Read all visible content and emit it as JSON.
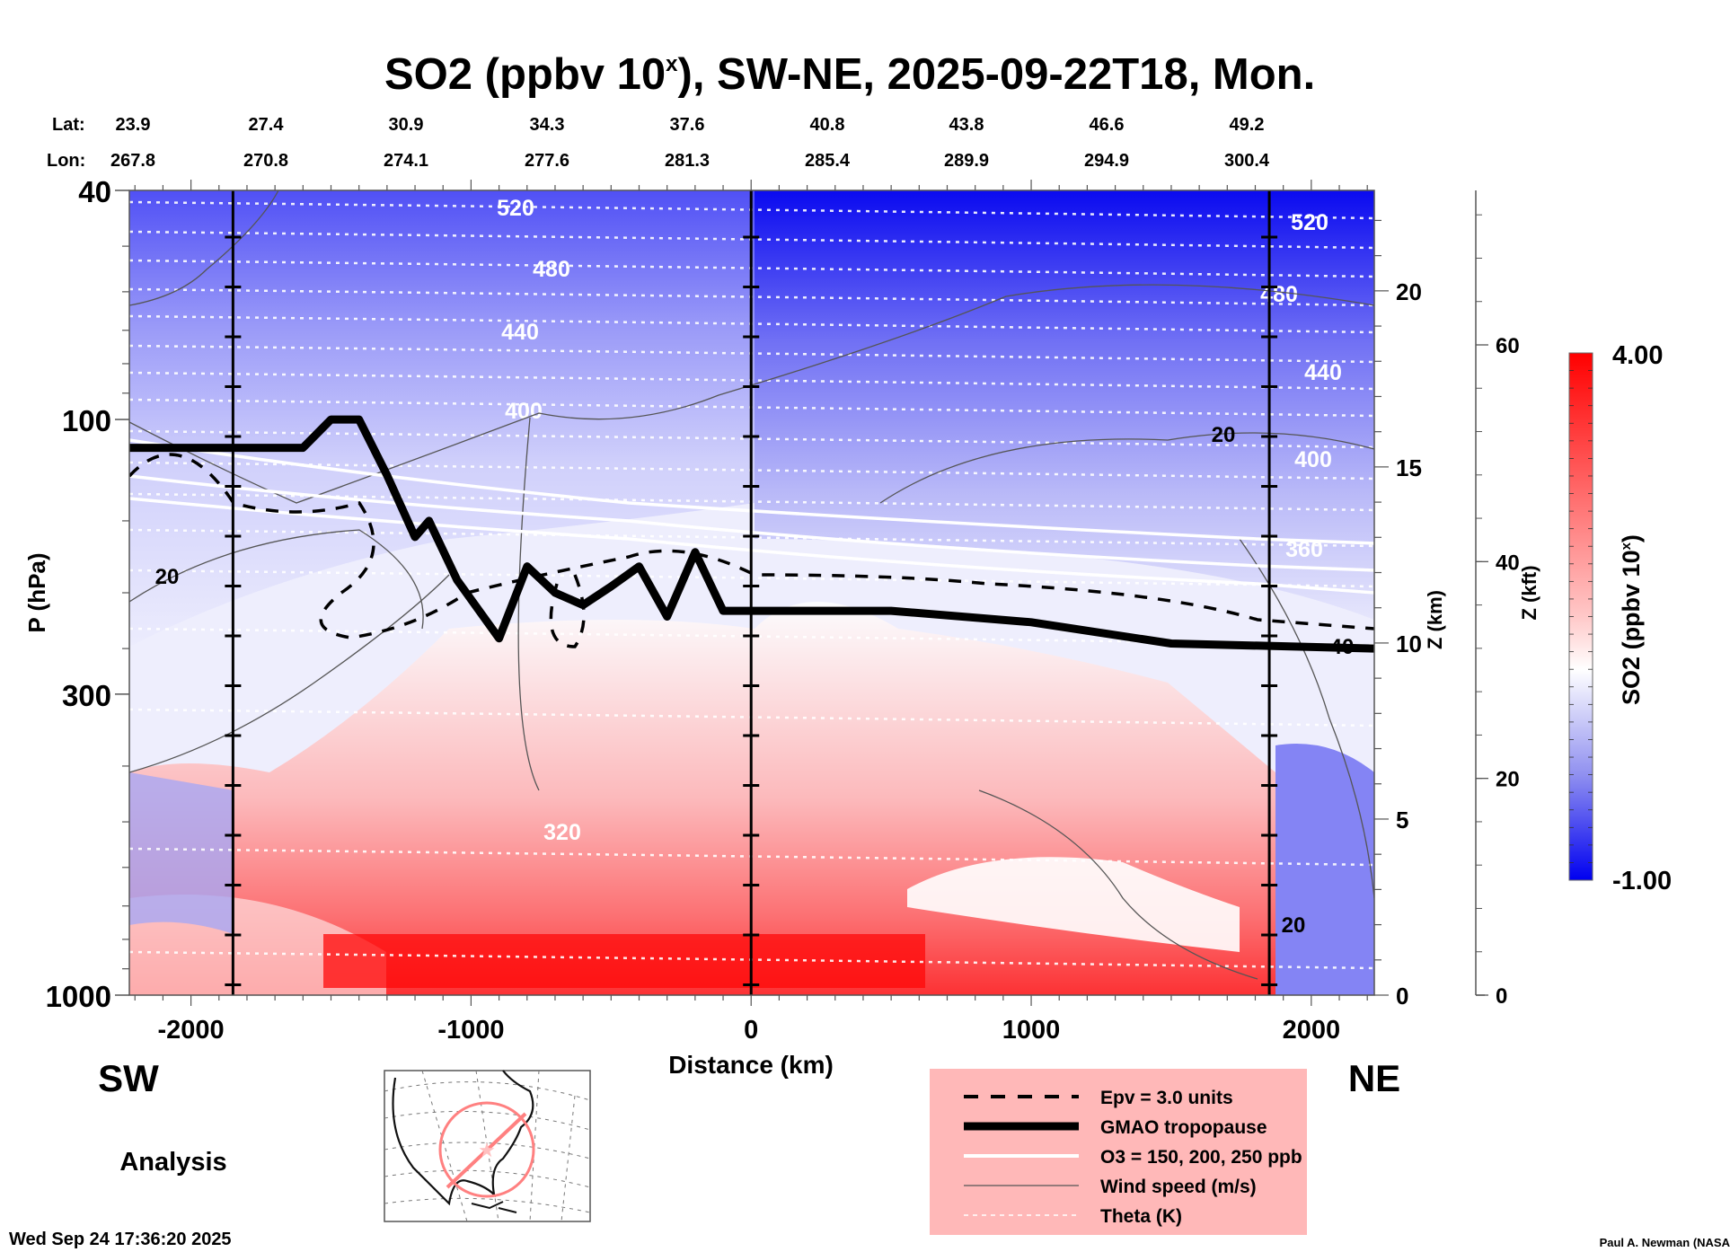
{
  "chart_data": {
    "type": "heatmap",
    "title": "SO2 (ppbv 10",
    "title_superscript": "x",
    "title_suffix": "), SW-NE, 2025-09-22T18, Mon.",
    "xlabel": "Distance (km)",
    "ylabel": "P (hPa)",
    "xlim": [
      -2220,
      2225
    ],
    "ylim": [
      1000,
      40
    ],
    "yscale": "log",
    "x_ticks": [
      -2000,
      -1000,
      0,
      1000,
      2000
    ],
    "x_tick_labels": [
      "-2000",
      "-1000",
      "0",
      "1000",
      "2000"
    ],
    "y_ticks": [
      40,
      100,
      300,
      1000
    ],
    "y_tick_labels": [
      "40",
      "100",
      "300",
      "1000"
    ],
    "right_axis_km": {
      "label": "Z (km)",
      "ticks": [
        0,
        5,
        10,
        15,
        20
      ],
      "tick_labels": [
        "0",
        "5",
        "10",
        "15",
        "20"
      ]
    },
    "right_axis_kft": {
      "label": "Z (kft)",
      "ticks": [
        0,
        20,
        40,
        60
      ],
      "tick_labels": [
        "0",
        "20",
        "40",
        "60"
      ]
    },
    "colorbar": {
      "label": "SO2 (ppbv 10",
      "label_superscript": "x",
      "label_suffix": ")",
      "min": -1.0,
      "max": 4.0,
      "min_label": "-1.00",
      "max_label": "4.00",
      "low_color": "#0000ff",
      "mid_color": "#ffffff",
      "high_color": "#ff0000"
    },
    "lat_lon_header": {
      "lat_label": "Lat:",
      "lon_label": "Lon:",
      "lat": [
        "23.9",
        "27.4",
        "30.9",
        "34.3",
        "37.6",
        "40.8",
        "43.8",
        "46.6",
        "49.2"
      ],
      "lon": [
        "267.8",
        "270.8",
        "274.1",
        "277.6",
        "281.3",
        "285.4",
        "289.9",
        "294.9",
        "300.4"
      ]
    },
    "vertical_marker_lines_km": [
      -1850,
      0,
      1850
    ],
    "theta_contour_labels": [
      "520",
      "480",
      "440",
      "400",
      "360",
      "320"
    ],
    "wind_contour_labels": [
      "20",
      "20",
      "20",
      "40"
    ],
    "tropopause_pressure_hpa": {
      "x": [
        -2220,
        -1600,
        -1500,
        -1400,
        -1300,
        -1200,
        -1150,
        -1050,
        -900,
        -800,
        -700,
        -600,
        -500,
        -400,
        -300,
        -200,
        -100,
        0,
        500,
        1000,
        1500,
        2225
      ],
      "p": [
        112,
        112,
        100,
        100,
        125,
        160,
        150,
        190,
        240,
        180,
        200,
        210,
        195,
        180,
        220,
        170,
        215,
        215,
        215,
        225,
        245,
        250
      ]
    },
    "so2_field_summary": {
      "stratosphere": "negative (blue), strongest near 40 hPa on NE side",
      "lower_troposphere": "positive (red), strongest below 900 hPa between -1200 and 500 km",
      "boundary_layer_far_NE": "negative pockets near 2000 km"
    },
    "legend": {
      "items": [
        {
          "style": "dashed-black",
          "label": "Epv = 3.0 units"
        },
        {
          "style": "thick-black",
          "label": "GMAO tropopause"
        },
        {
          "style": "white",
          "label": "O3 = 150, 200, 250 ppb"
        },
        {
          "style": "thin-gray",
          "label": "Wind speed (m/s)"
        },
        {
          "style": "dotted-white",
          "label": "Theta (K)"
        }
      ],
      "background": "#ffb8b8"
    }
  },
  "labels": {
    "sw": "SW",
    "ne": "NE",
    "analysis": "Analysis",
    "timestamp": "Wed Sep 24 17:36:20 2025",
    "credit": "Paul A. Newman (NASA"
  }
}
